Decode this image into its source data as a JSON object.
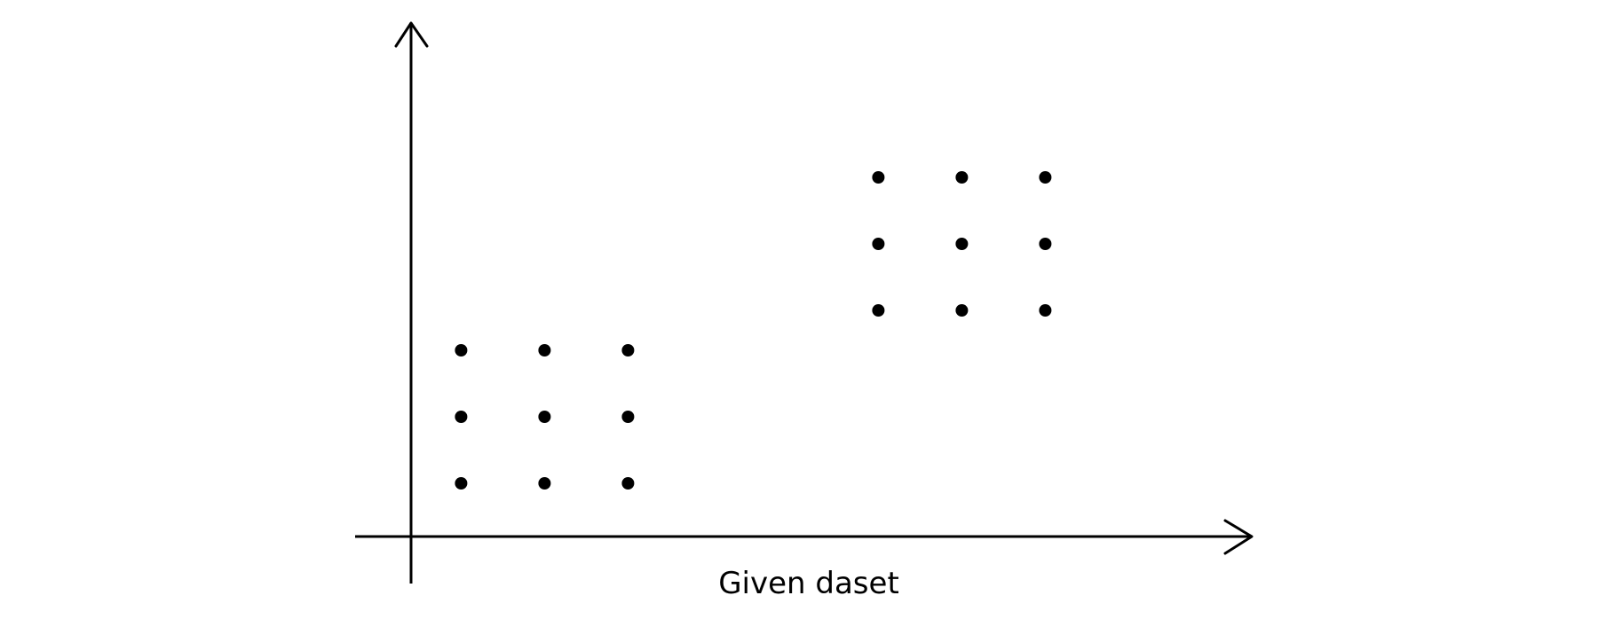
{
  "chart_data": {
    "type": "scatter",
    "title": "",
    "xlabel": "Given daset",
    "ylabel": "",
    "xlim": [
      0,
      10
    ],
    "ylim": [
      0,
      8
    ],
    "grid": false,
    "legend": "none",
    "marker_color": "#000000",
    "axis_color": "#000000",
    "series": [
      {
        "points": [
          {
            "x": 0.6,
            "y": 0.8
          },
          {
            "x": 1.6,
            "y": 0.8
          },
          {
            "x": 2.6,
            "y": 0.8
          },
          {
            "x": 0.6,
            "y": 1.8
          },
          {
            "x": 1.6,
            "y": 1.8
          },
          {
            "x": 2.6,
            "y": 1.8
          },
          {
            "x": 0.6,
            "y": 2.8
          },
          {
            "x": 1.6,
            "y": 2.8
          },
          {
            "x": 2.6,
            "y": 2.8
          },
          {
            "x": 5.6,
            "y": 3.4
          },
          {
            "x": 6.6,
            "y": 3.4
          },
          {
            "x": 7.6,
            "y": 3.4
          },
          {
            "x": 5.6,
            "y": 4.4
          },
          {
            "x": 6.6,
            "y": 4.4
          },
          {
            "x": 7.6,
            "y": 4.4
          },
          {
            "x": 5.6,
            "y": 5.4
          },
          {
            "x": 6.6,
            "y": 5.4
          },
          {
            "x": 7.6,
            "y": 5.4
          }
        ]
      }
    ]
  }
}
